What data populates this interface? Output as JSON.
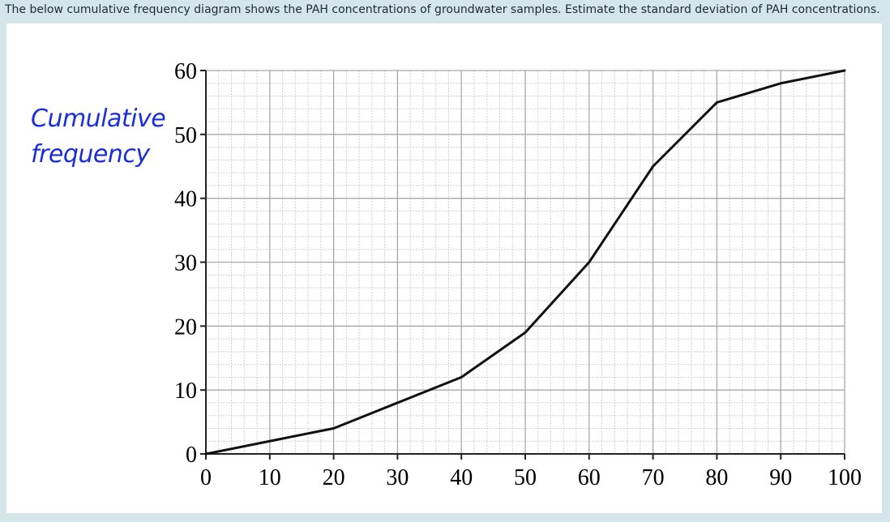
{
  "question": "The below cumulative frequency diagram shows the PAH concentrations of groundwater samples.  Estimate the standard deviation of PAH concentrations.",
  "colors": {
    "page_bg": "#d5e6ea",
    "panel_bg": "#ffffff",
    "ylabel": "#1a2fd6",
    "grid": "#c9c9c9",
    "axis": "#222222"
  },
  "chart_data": {
    "type": "line",
    "title": "",
    "xlabel": "",
    "ylabel_lines": [
      "Cumulative",
      "frequency"
    ],
    "xlim": [
      0,
      100
    ],
    "ylim": [
      0,
      60
    ],
    "x_ticks": [
      0,
      10,
      20,
      30,
      40,
      50,
      60,
      70,
      80,
      90,
      100
    ],
    "y_ticks": [
      0,
      10,
      20,
      30,
      40,
      50,
      60
    ],
    "grid": true,
    "minor_grid_step": 2,
    "series": [
      {
        "x": [
          0,
          10,
          20,
          30,
          40,
          50,
          60,
          70,
          80,
          90,
          100
        ],
        "y": [
          0,
          2,
          4,
          8,
          12,
          19,
          30,
          45,
          55,
          58,
          60
        ]
      }
    ]
  }
}
